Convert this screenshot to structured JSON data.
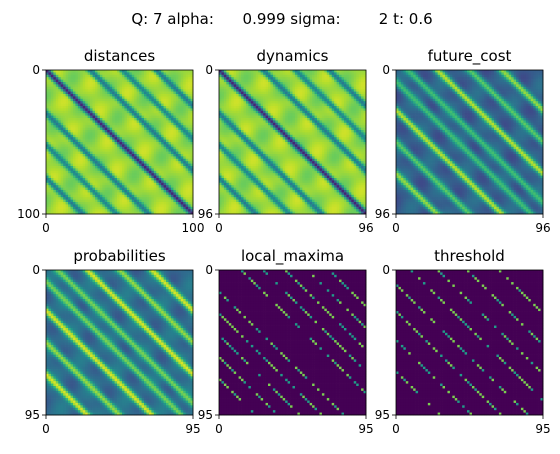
{
  "figure": {
    "suptitle": "Q: 7 alpha:      0.999 sigma:        2 t: 0.6"
  },
  "chart_data": [
    {
      "type": "heatmap",
      "title": "distances",
      "xlim": [
        0,
        100
      ],
      "ylim": [
        100,
        0
      ],
      "xticks": [
        "0",
        "100"
      ],
      "yticks": [
        "0",
        "100"
      ],
      "colormap": "viridis",
      "pattern": "smooth-diagonal-bands",
      "background_level": 0.85,
      "stripe_offsets": [
        -0.75,
        -0.52,
        -0.3,
        0,
        0.3,
        0.52,
        0.75
      ],
      "stripe_levels": [
        0.4,
        0.45,
        0.4,
        0.1,
        0.4,
        0.45,
        0.4
      ]
    },
    {
      "type": "heatmap",
      "title": "dynamics",
      "xlim": [
        0,
        96
      ],
      "ylim": [
        96,
        0
      ],
      "xticks": [
        "0",
        "96"
      ],
      "yticks": [
        "0",
        "96"
      ],
      "colormap": "viridis",
      "pattern": "smooth-diagonal-bands",
      "background_level": 0.85,
      "stripe_offsets": [
        -0.75,
        -0.52,
        -0.3,
        0,
        0.3,
        0.52,
        0.75
      ],
      "stripe_levels": [
        0.4,
        0.45,
        0.4,
        0.1,
        0.4,
        0.45,
        0.4
      ]
    },
    {
      "type": "heatmap",
      "title": "future_cost",
      "xlim": [
        0,
        96
      ],
      "ylim": [
        96,
        0
      ],
      "xticks": [
        "0",
        "96"
      ],
      "yticks": [
        "0",
        "96"
      ],
      "colormap": "viridis",
      "pattern": "high-contrast-diagonal-bands",
      "background_level": 0.3,
      "stripe_offsets": [
        -0.72,
        -0.5,
        -0.28,
        -0.08,
        0.08,
        0.28,
        0.5,
        0.72
      ],
      "stripe_levels": [
        0.85,
        0.75,
        0.9,
        0.7,
        0.7,
        0.9,
        0.75,
        0.85
      ]
    },
    {
      "type": "heatmap",
      "title": "probabilities",
      "xlim": [
        0,
        95
      ],
      "ylim": [
        95,
        0
      ],
      "xticks": [
        "0",
        "95"
      ],
      "yticks": [
        "0",
        "95"
      ],
      "colormap": "viridis",
      "pattern": "bright-diagonal-ridges",
      "background_level": 0.35,
      "stripe_offsets": [
        -0.72,
        -0.5,
        -0.28,
        -0.08,
        0.08,
        0.28,
        0.5,
        0.72
      ],
      "stripe_levels": [
        0.95,
        0.85,
        0.95,
        0.8,
        0.8,
        0.95,
        0.85,
        0.95
      ]
    },
    {
      "type": "heatmap",
      "title": "local_maxima",
      "xlim": [
        0,
        95
      ],
      "ylim": [
        95,
        0
      ],
      "xticks": [
        "0",
        "95"
      ],
      "yticks": [
        "0",
        "95"
      ],
      "colormap": "viridis",
      "pattern": "sparse-diagonal-dots",
      "values_range": [
        0,
        1
      ],
      "stripe_offsets": [
        -0.75,
        -0.6,
        -0.45,
        -0.3,
        -0.15,
        0.15,
        0.3,
        0.45,
        0.6,
        0.75
      ]
    },
    {
      "type": "heatmap",
      "title": "threshold",
      "xlim": [
        0,
        95
      ],
      "ylim": [
        95,
        0
      ],
      "xticks": [
        "0",
        "95"
      ],
      "yticks": [
        "0",
        "95"
      ],
      "colormap": "viridis",
      "pattern": "sparse-diagonal-dots",
      "values_range": [
        0,
        1
      ],
      "stripe_offsets": [
        -0.7,
        -0.48,
        -0.28,
        -0.1,
        0.1,
        0.28,
        0.48,
        0.7
      ]
    }
  ]
}
